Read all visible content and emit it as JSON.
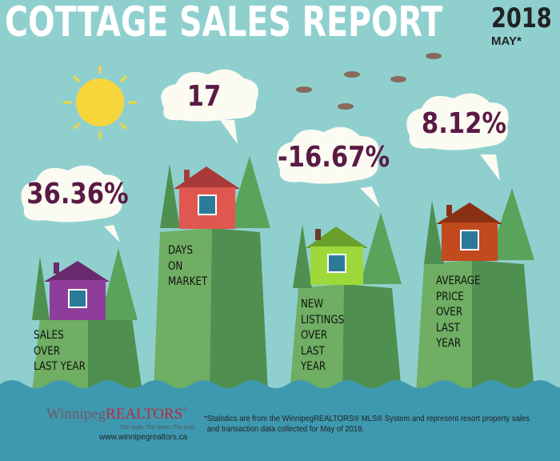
{
  "header": {
    "title": "COTTAGE SALES REPORT",
    "year": "2018",
    "month": "MAY*"
  },
  "stats": [
    {
      "value": "36.36%",
      "label": [
        "SALES",
        "OVER",
        "LAST YEAR"
      ],
      "house_color": "#8e3e9a"
    },
    {
      "value": "17",
      "label": [
        "DAYS",
        "ON",
        "MARKET"
      ],
      "house_color": "#e0574f"
    },
    {
      "value": "-16.67%",
      "label": [
        "NEW",
        "LISTINGS",
        "OVER",
        "LAST",
        "YEAR"
      ],
      "house_color": "#9dd93a"
    },
    {
      "value": "8.12%",
      "label": [
        "AVERAGE",
        "PRICE",
        "OVER",
        "LAST",
        "YEAR"
      ],
      "house_color": "#c14a1e"
    }
  ],
  "footer": {
    "brand_a": "Winnipeg",
    "brand_b": "REALTORS",
    "reg": "®",
    "tagline": "The tools. The team. The trust.",
    "url": "www.winnipegrealtors.ca",
    "note_line1": "*Statistics are from the WinnipegREALTORS® MLS® System and represent resort property sales",
    "note_line2": "and transaction data collected for May of 2018."
  },
  "colors": {
    "sky": "#8fd0cf",
    "hill_light": "#6fae63",
    "hill_dark": "#4f8f50",
    "water": "#3e98b0",
    "text_stat": "#5a1a45"
  }
}
